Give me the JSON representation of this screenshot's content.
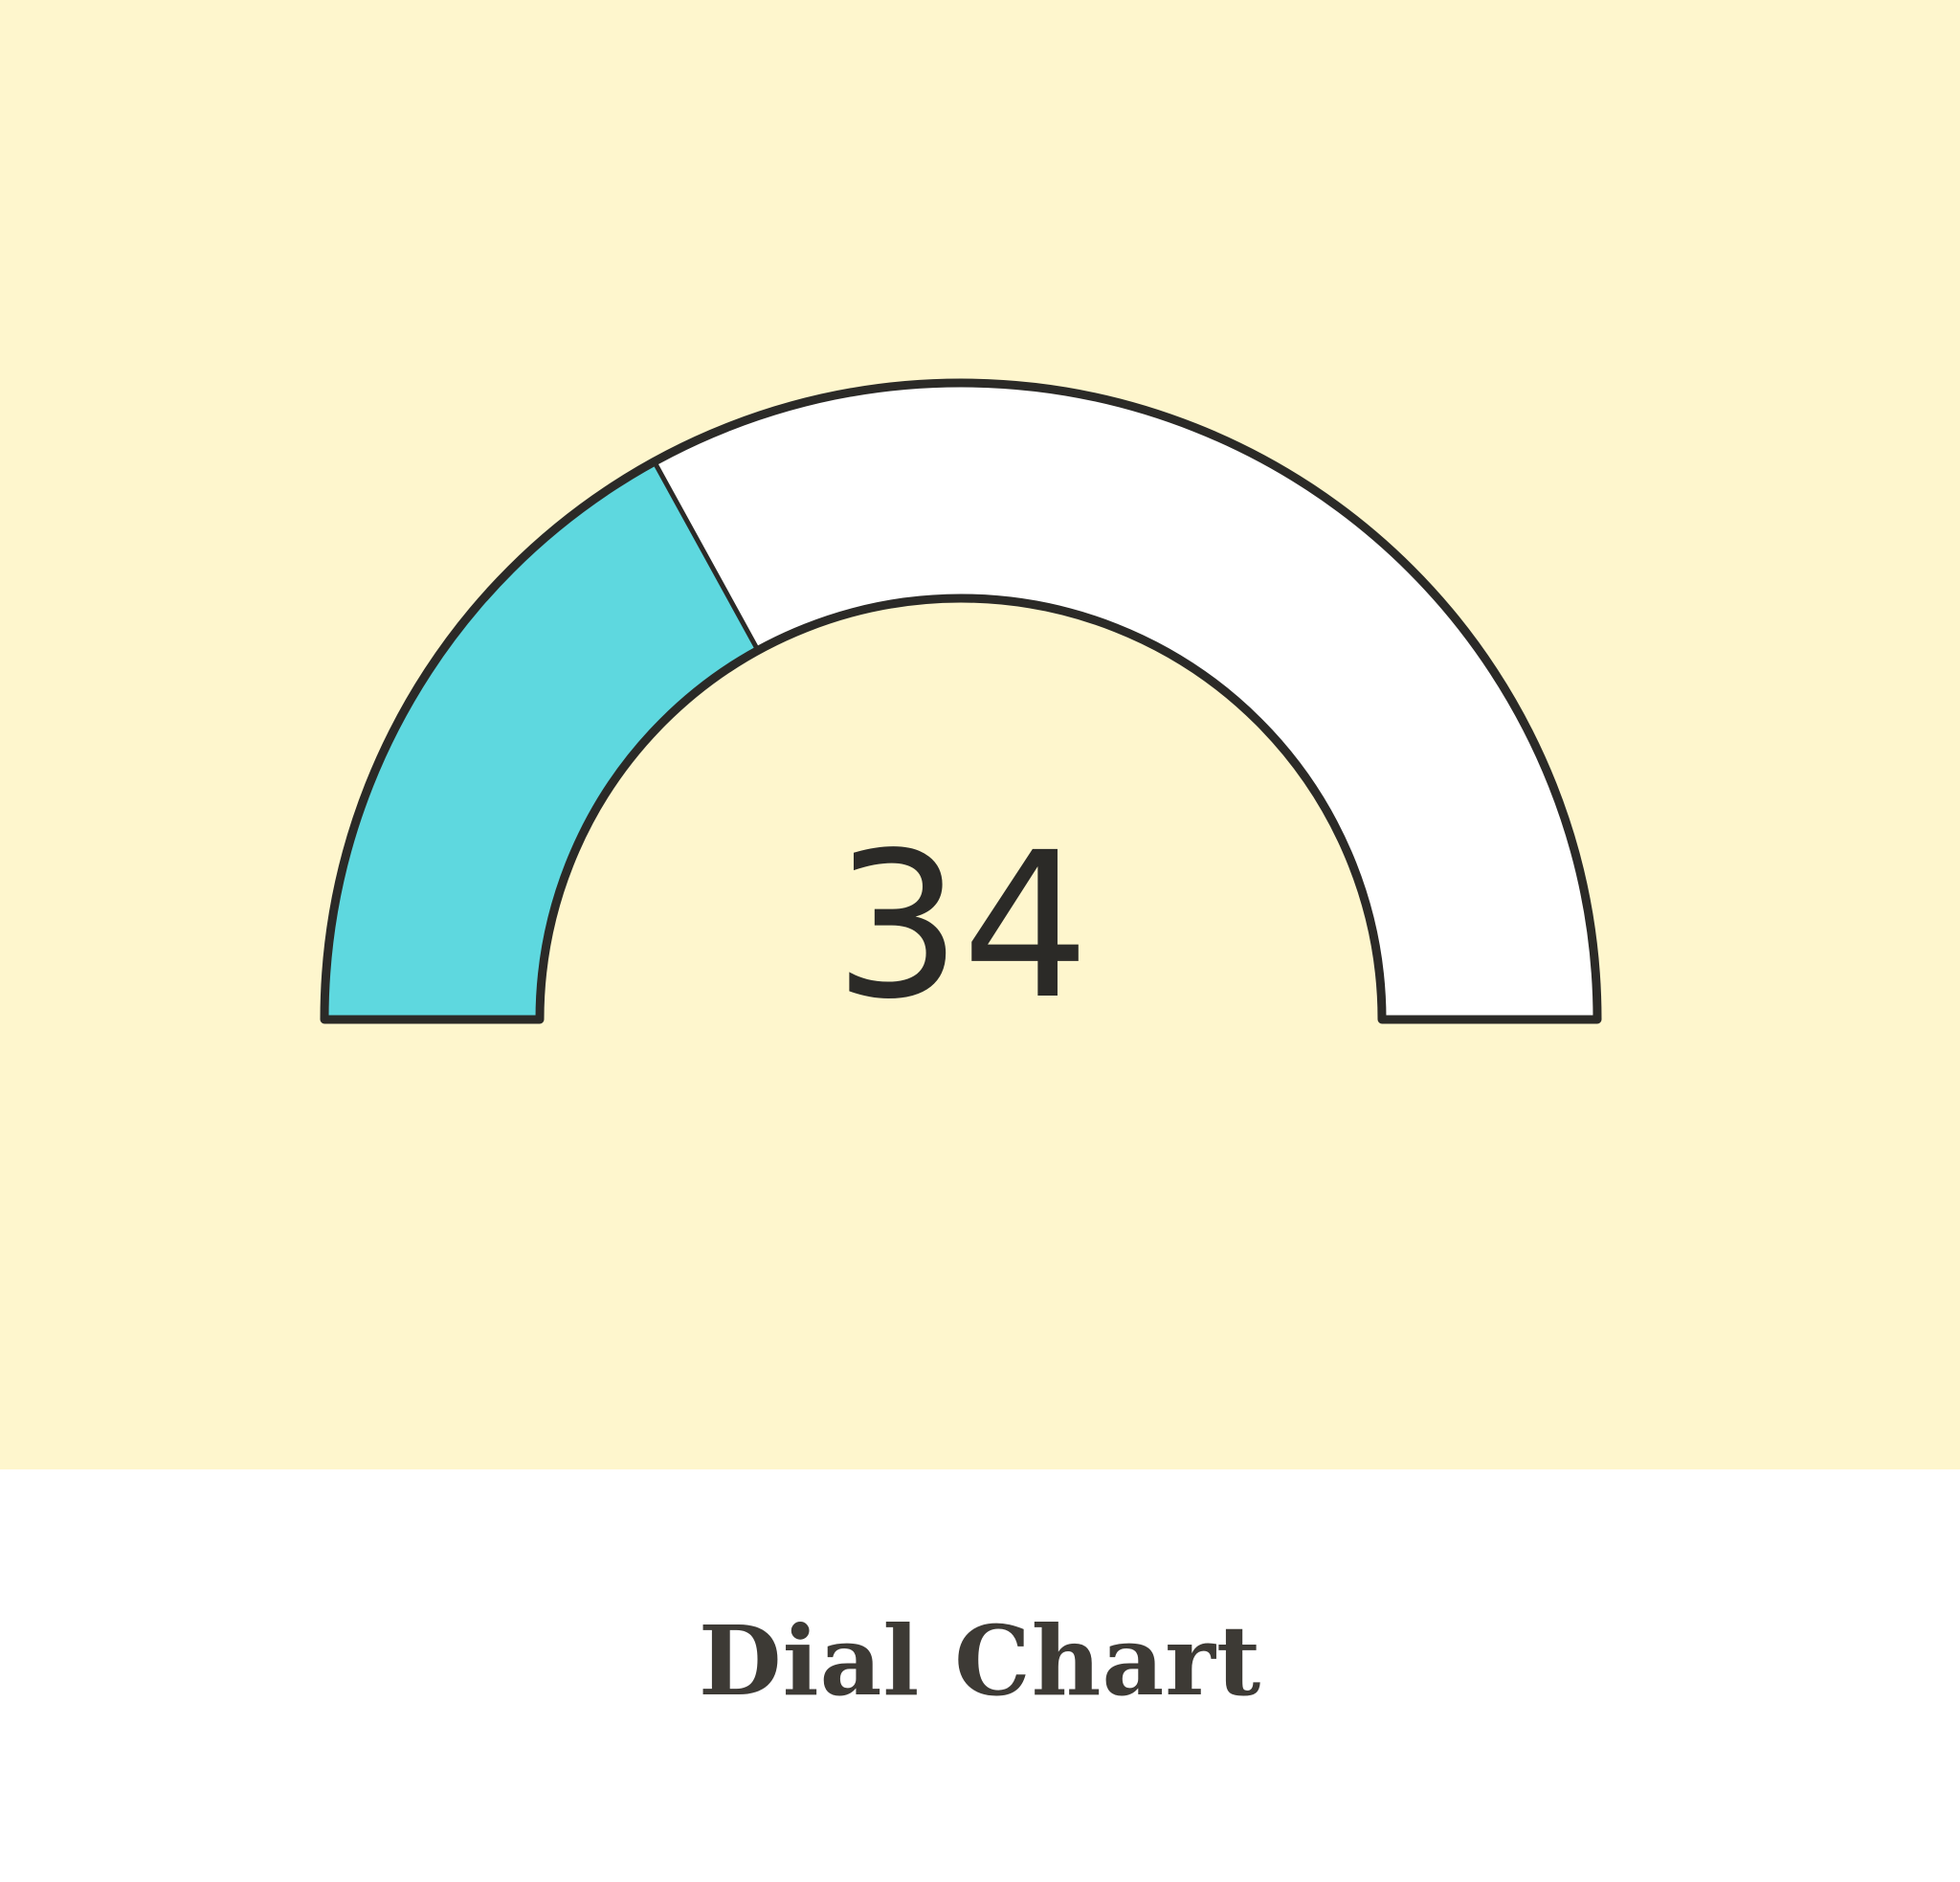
{
  "chart_data": {
    "type": "dial",
    "value": 34,
    "min": 0,
    "max": 100,
    "value_label": "34",
    "colors": {
      "filled": "#5ed8df",
      "remaining": "#ffffff",
      "outline": "#2b2a27",
      "background": "#fef6cd"
    }
  },
  "caption": {
    "text": "Dial Chart",
    "color": "#3d3a35"
  }
}
